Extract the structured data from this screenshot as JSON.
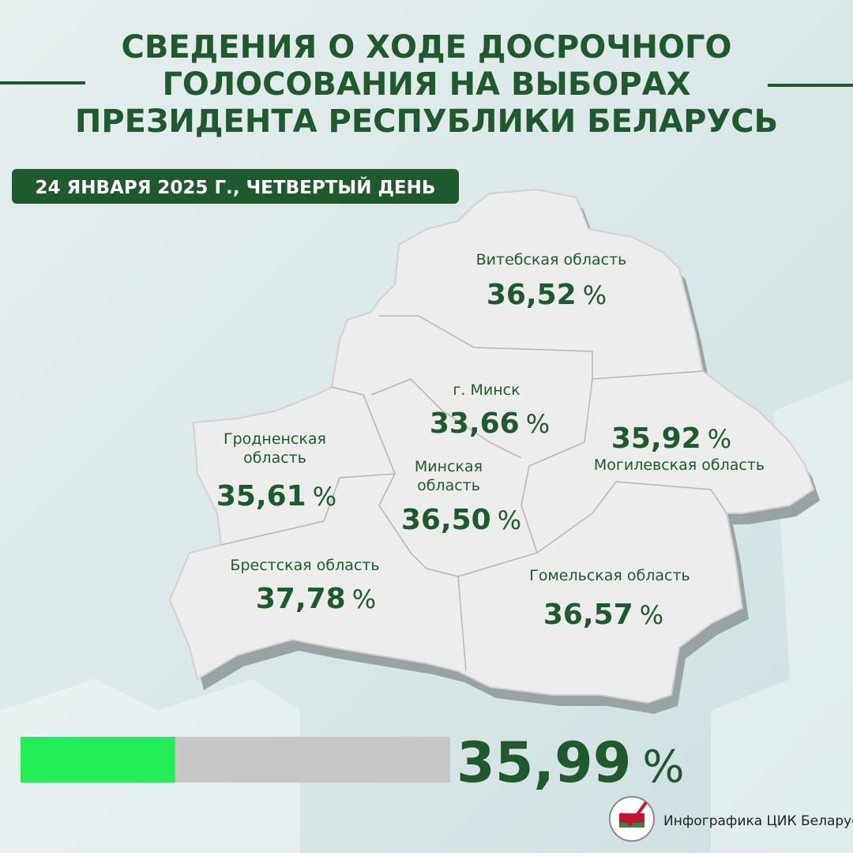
{
  "header": {
    "title_lines": [
      "СВЕДЕНИЯ О ХОДЕ ДОСРОЧНОГО",
      "ГОЛОСОВАНИЯ НА ВЫБОРАХ",
      "ПРЕЗИДЕНТА РЕСПУБЛИКИ БЕЛАРУСЬ"
    ],
    "date": "24 ЯНВАРЯ 2025 Г., ЧЕТВЕРТЫЙ ДЕНЬ"
  },
  "unit": "%",
  "regions": [
    {
      "name_lines": [
        "Витебская область"
      ],
      "value": 36.52,
      "value_label": "36,52"
    },
    {
      "name_lines": [
        "г. Минск"
      ],
      "value": 33.66,
      "value_label": "33,66"
    },
    {
      "name_lines": [
        "Могилевская область"
      ],
      "value": 35.92,
      "value_label": "35,92"
    },
    {
      "name_lines": [
        "Гродненская",
        "область"
      ],
      "value": 35.61,
      "value_label": "35,61"
    },
    {
      "name_lines": [
        "Минская",
        "область"
      ],
      "value": 36.5,
      "value_label": "36,50"
    },
    {
      "name_lines": [
        "Брестская область"
      ],
      "value": 37.78,
      "value_label": "37,78"
    },
    {
      "name_lines": [
        "Гомельская область"
      ],
      "value": 36.57,
      "value_label": "36,57"
    }
  ],
  "total": {
    "value": 35.99,
    "value_label": "35,99",
    "scale": [
      0,
      100
    ]
  },
  "footer": {
    "credit": "Инфографика ЦИК Беларуси"
  }
}
